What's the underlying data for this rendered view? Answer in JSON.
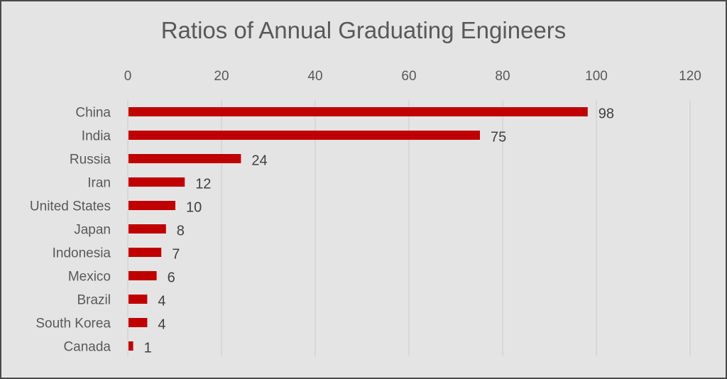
{
  "chart_data": {
    "type": "bar",
    "orientation": "horizontal",
    "title": "Ratios of Annual Graduating Engineers",
    "xlabel": "",
    "ylabel": "",
    "categories": [
      "China",
      "India",
      "Russia",
      "Iran",
      "United States",
      "Japan",
      "Indonesia",
      "Mexico",
      "Brazil",
      "South Korea",
      "Canada"
    ],
    "values": [
      98,
      75,
      24,
      12,
      10,
      8,
      7,
      6,
      4,
      4,
      1
    ],
    "data_labels": [
      "98",
      "75",
      "24",
      "12",
      "10",
      "8",
      "7",
      "6",
      "4",
      "4",
      "1"
    ],
    "xlim": [
      0,
      120
    ],
    "x_ticks": [
      0,
      20,
      40,
      60,
      80,
      100,
      120
    ],
    "x_tick_labels": [
      "0",
      "20",
      "40",
      "60",
      "80",
      "100",
      "120"
    ],
    "axis_position": "top",
    "grid": true,
    "legend": "none",
    "colors": {
      "bar": "#c00000",
      "background": "#e4e4e4",
      "gridline": "#d4d4d4",
      "text": "#595959"
    }
  }
}
